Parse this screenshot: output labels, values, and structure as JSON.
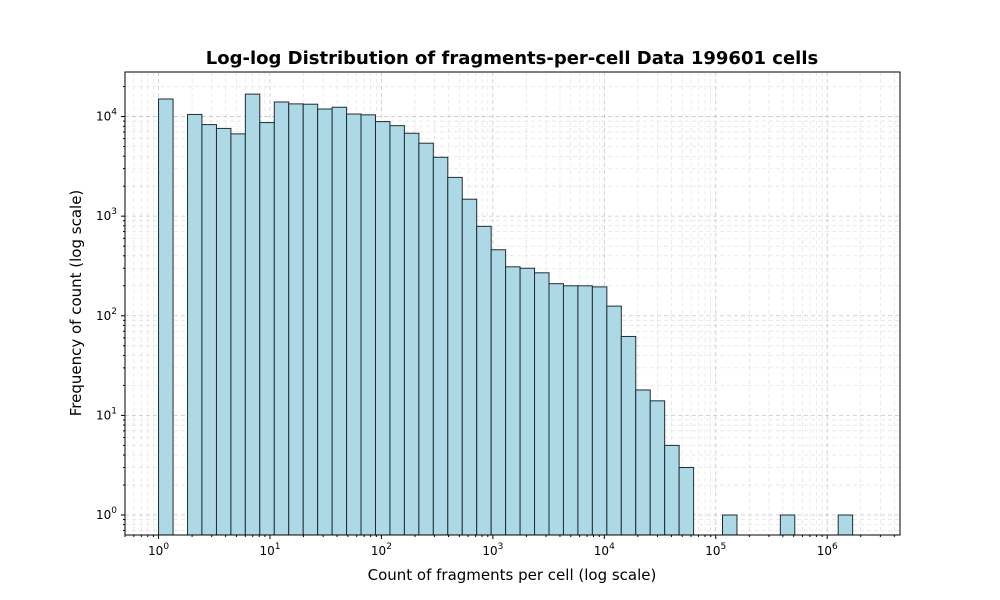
{
  "chart_data": {
    "type": "bar",
    "subtype": "histogram",
    "title": "Log-log Distribution of fragments-per-cell Data 199601 cells",
    "xlabel": "Count of fragments per cell (log scale)",
    "ylabel": "Frequency of count (log scale)",
    "xscale": "log",
    "yscale": "log",
    "xlim": [
      0.5,
      4500000
    ],
    "ylim": [
      0.63,
      28000
    ],
    "grid": "major and minor, dashed",
    "x_ticks": [
      {
        "base": "10",
        "exp": "0",
        "value": 1
      },
      {
        "base": "10",
        "exp": "1",
        "value": 10
      },
      {
        "base": "10",
        "exp": "2",
        "value": 100
      },
      {
        "base": "10",
        "exp": "3",
        "value": 1000
      },
      {
        "base": "10",
        "exp": "4",
        "value": 10000
      },
      {
        "base": "10",
        "exp": "5",
        "value": 100000
      },
      {
        "base": "10",
        "exp": "6",
        "value": 1000000
      }
    ],
    "y_ticks": [
      {
        "base": "10",
        "exp": "0",
        "value": 1
      },
      {
        "base": "10",
        "exp": "1",
        "value": 10
      },
      {
        "base": "10",
        "exp": "2",
        "value": 100
      },
      {
        "base": "10",
        "exp": "3",
        "value": 1000
      },
      {
        "base": "10",
        "exp": "4",
        "value": 10000
      }
    ],
    "bin_edges": [
      1,
      1.35,
      1.82,
      2.45,
      3.31,
      4.46,
      6.01,
      8.1,
      10.93,
      14.73,
      19.86,
      26.78,
      36.1,
      48.67,
      65.61,
      88.45,
      119.25,
      160.77,
      216.74,
      292.2,
      393.93,
      531.08,
      715.98,
      965.26,
      1301.3,
      1754.4,
      2365.2,
      3188.7,
      4298.9,
      5795.6,
      7813.4,
      10534,
      14201,
      19145,
      25811,
      34798,
      46914,
      63247,
      85267,
      114954,
      154977,
      208933,
      281676,
      379744,
      511955,
      690193,
      930489,
      1254443,
      1691186,
      2279986
    ],
    "counts": [
      15000,
      0,
      10500,
      8300,
      7600,
      6700,
      16800,
      8700,
      14000,
      13400,
      13300,
      11900,
      12400,
      10600,
      10400,
      8900,
      8100,
      6800,
      5400,
      3900,
      2450,
      1480,
      790,
      460,
      310,
      300,
      270,
      210,
      200,
      200,
      195,
      125,
      62,
      18,
      14,
      5,
      3,
      0,
      0,
      1,
      0,
      0,
      0,
      1,
      0,
      0,
      0,
      1,
      0
    ]
  }
}
